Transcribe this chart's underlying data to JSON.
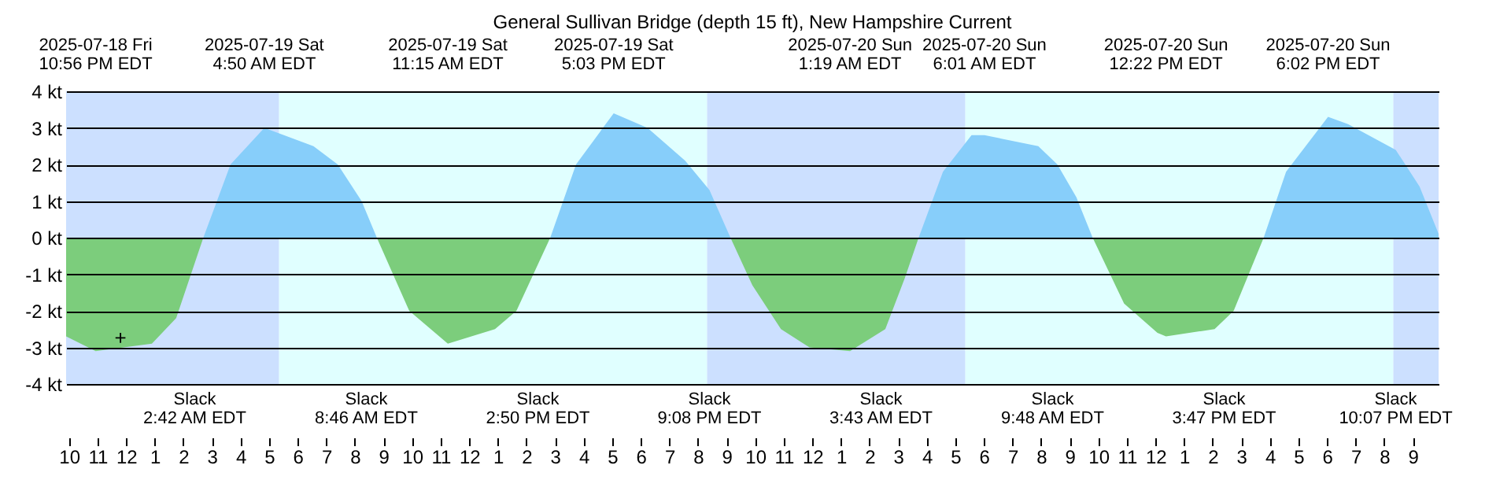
{
  "chart_data": {
    "type": "area",
    "title": "General Sullivan Bridge (depth 15 ft), New Hampshire Current",
    "x": [
      "2025-07-18T21:54",
      "2025-07-18T22:56",
      "2025-07-19T00:54",
      "2025-07-19T01:45",
      "2025-07-19T02:42",
      "2025-07-19T03:39",
      "2025-07-19T04:50",
      "2025-07-19T06:33",
      "2025-07-19T07:24",
      "2025-07-19T08:14",
      "2025-07-19T08:46",
      "2025-07-19T09:54",
      "2025-07-19T11:15",
      "2025-07-19T12:54",
      "2025-07-19T13:39",
      "2025-07-19T14:50",
      "2025-07-19T15:44",
      "2025-07-19T17:03",
      "2025-07-19T18:14",
      "2025-07-19T19:33",
      "2025-07-19T20:24",
      "2025-07-19T21:08",
      "2025-07-19T21:54",
      "2025-07-19T22:54",
      "2025-07-19T23:54",
      "2025-07-20T01:19",
      "2025-07-20T02:33",
      "2025-07-20T03:14",
      "2025-07-20T03:43",
      "2025-07-20T04:34",
      "2025-07-20T05:34",
      "2025-07-20T06:01",
      "2025-07-20T07:54",
      "2025-07-20T08:34",
      "2025-07-20T09:14",
      "2025-07-20T09:48",
      "2025-07-20T10:54",
      "2025-07-20T12:04",
      "2025-07-20T12:22",
      "2025-07-20T14:04",
      "2025-07-20T14:44",
      "2025-07-20T15:47",
      "2025-07-20T16:34",
      "2025-07-20T18:02",
      "2025-07-20T18:44",
      "2025-07-20T20:24",
      "2025-07-20T21:14",
      "2025-07-20T21:54"
    ],
    "series": [
      {
        "color": "#87cefa",
        "values": [
          null,
          null,
          null,
          null,
          0,
          2.0,
          3.0,
          2.5,
          2.0,
          1.0,
          0,
          null,
          null,
          null,
          null,
          0,
          2.0,
          3.4,
          3.0,
          2.1,
          1.3,
          0,
          null,
          null,
          null,
          null,
          null,
          null,
          0,
          1.8,
          2.8,
          2.8,
          2.5,
          2.0,
          1.1,
          0,
          null,
          null,
          null,
          null,
          null,
          0,
          1.8,
          3.3,
          3.1,
          2.4,
          1.4,
          0.1
        ]
      },
      {
        "color": "#7ccd7c",
        "values": [
          -2.7,
          -3.1,
          -2.9,
          -2.2,
          0,
          null,
          null,
          null,
          null,
          null,
          0,
          -2.0,
          -2.9,
          -2.5,
          -2.0,
          0,
          null,
          null,
          null,
          null,
          null,
          0,
          -1.3,
          -2.5,
          -3.0,
          -3.1,
          -2.5,
          -1.1,
          0,
          null,
          null,
          null,
          null,
          null,
          null,
          0,
          -1.8,
          -2.6,
          -2.7,
          -2.5,
          -2.0,
          0,
          null,
          null,
          null,
          null,
          null,
          null
        ]
      }
    ],
    "xlim": [
      "2025-07-18T21:54",
      "2025-07-20T21:54"
    ],
    "xticks": [
      {
        "value": "2025-07-18T22:00",
        "label": "10"
      },
      {
        "value": "2025-07-18T23:00",
        "label": "11"
      },
      {
        "value": "2025-07-19T00:00",
        "label": "12"
      },
      {
        "value": "2025-07-19T01:00",
        "label": "1"
      },
      {
        "value": "2025-07-19T02:00",
        "label": "2"
      },
      {
        "value": "2025-07-19T03:00",
        "label": "3"
      },
      {
        "value": "2025-07-19T04:00",
        "label": "4"
      },
      {
        "value": "2025-07-19T05:00",
        "label": "5"
      },
      {
        "value": "2025-07-19T06:00",
        "label": "6"
      },
      {
        "value": "2025-07-19T07:00",
        "label": "7"
      },
      {
        "value": "2025-07-19T08:00",
        "label": "8"
      },
      {
        "value": "2025-07-19T09:00",
        "label": "9"
      },
      {
        "value": "2025-07-19T10:00",
        "label": "10"
      },
      {
        "value": "2025-07-19T11:00",
        "label": "11"
      },
      {
        "value": "2025-07-19T12:00",
        "label": "12"
      },
      {
        "value": "2025-07-19T13:00",
        "label": "1"
      },
      {
        "value": "2025-07-19T14:00",
        "label": "2"
      },
      {
        "value": "2025-07-19T15:00",
        "label": "3"
      },
      {
        "value": "2025-07-19T16:00",
        "label": "4"
      },
      {
        "value": "2025-07-19T17:00",
        "label": "5"
      },
      {
        "value": "2025-07-19T18:00",
        "label": "6"
      },
      {
        "value": "2025-07-19T19:00",
        "label": "7"
      },
      {
        "value": "2025-07-19T20:00",
        "label": "8"
      },
      {
        "value": "2025-07-19T21:00",
        "label": "9"
      },
      {
        "value": "2025-07-19T22:00",
        "label": "10"
      },
      {
        "value": "2025-07-19T23:00",
        "label": "11"
      },
      {
        "value": "2025-07-20T00:00",
        "label": "12"
      },
      {
        "value": "2025-07-20T01:00",
        "label": "1"
      },
      {
        "value": "2025-07-20T02:00",
        "label": "2"
      },
      {
        "value": "2025-07-20T03:00",
        "label": "3"
      },
      {
        "value": "2025-07-20T04:00",
        "label": "4"
      },
      {
        "value": "2025-07-20T05:00",
        "label": "5"
      },
      {
        "value": "2025-07-20T06:00",
        "label": "6"
      },
      {
        "value": "2025-07-20T07:00",
        "label": "7"
      },
      {
        "value": "2025-07-20T08:00",
        "label": "8"
      },
      {
        "value": "2025-07-20T09:00",
        "label": "9"
      },
      {
        "value": "2025-07-20T10:00",
        "label": "10"
      },
      {
        "value": "2025-07-20T11:00",
        "label": "11"
      },
      {
        "value": "2025-07-20T12:00",
        "label": "12"
      },
      {
        "value": "2025-07-20T13:00",
        "label": "1"
      },
      {
        "value": "2025-07-20T14:00",
        "label": "2"
      },
      {
        "value": "2025-07-20T15:00",
        "label": "3"
      },
      {
        "value": "2025-07-20T16:00",
        "label": "4"
      },
      {
        "value": "2025-07-20T17:00",
        "label": "5"
      },
      {
        "value": "2025-07-20T18:00",
        "label": "6"
      },
      {
        "value": "2025-07-20T19:00",
        "label": "7"
      },
      {
        "value": "2025-07-20T20:00",
        "label": "8"
      },
      {
        "value": "2025-07-20T21:00",
        "label": "9"
      }
    ],
    "ylim": [
      -4,
      4
    ],
    "x2lim": [
      "2025-07-18T21:54",
      "2025-07-20T21:54"
    ],
    "x2ticks": [
      {
        "value": "2025-07-18T22:56",
        "label": "2025-07-18 Fri\n10:56 PM EDT"
      },
      {
        "value": "2025-07-19T04:50",
        "label": "2025-07-19 Sat\n4:50 AM EDT"
      },
      {
        "value": "2025-07-19T11:15",
        "label": "2025-07-19 Sat\n11:15 AM EDT"
      },
      {
        "value": "2025-07-19T17:03",
        "label": "2025-07-19 Sat\n5:03 PM EDT"
      },
      {
        "value": "2025-07-20T01:19",
        "label": "2025-07-20 Sun\n1:19 AM EDT"
      },
      {
        "value": "2025-07-20T06:01",
        "label": "2025-07-20 Sun\n6:01 AM EDT"
      },
      {
        "value": "2025-07-20T12:22",
        "label": "2025-07-20 Sun\n12:22 PM EDT"
      },
      {
        "value": "2025-07-20T18:02",
        "label": "2025-07-20 Sun\n6:02 PM EDT"
      }
    ],
    "yticks": [
      {
        "value": 4,
        "label": "4 kt"
      },
      {
        "value": 3,
        "label": "3 kt"
      },
      {
        "value": 2,
        "label": "2 kt"
      },
      {
        "value": 1,
        "label": "1 kt"
      },
      {
        "value": 0,
        "label": "0 kt"
      },
      {
        "value": -1,
        "label": "-1 kt"
      },
      {
        "value": -2,
        "label": "-2 kt"
      },
      {
        "value": -3,
        "label": "-3 kt"
      },
      {
        "value": -4,
        "label": "-4 kt"
      }
    ],
    "grid": "y",
    "bands": [
      {
        "axis": "x",
        "from": "2025-07-18T21:54",
        "to": "2025-07-19T05:21",
        "color": "#cce0ff"
      },
      {
        "axis": "x",
        "from": "2025-07-19T05:21",
        "to": "2025-07-19T20:19",
        "color": "#e0ffff"
      },
      {
        "axis": "x",
        "from": "2025-07-19T20:19",
        "to": "2025-07-20T05:21",
        "color": "#cce0ff"
      },
      {
        "axis": "x",
        "from": "2025-07-20T05:21",
        "to": "2025-07-20T20:19",
        "color": "#e0ffff"
      },
      {
        "axis": "x",
        "from": "2025-07-20T20:19",
        "to": "2025-07-20T21:54",
        "color": "#cce0ff"
      }
    ],
    "annotations": [
      "Slack\n2:42 AM EDT",
      "Slack\n8:46 AM EDT",
      "Slack\n2:50 PM EDT",
      "Slack\n9:08 PM EDT",
      "Slack\n3:43 AM EDT",
      "Slack\n9:48 AM EDT",
      "Slack\n3:47 PM EDT",
      "Slack\n10:07 PM EDT",
      {
        "text": "+",
        "x": "2025-07-18T23:48",
        "y": -3.0
      }
    ]
  }
}
